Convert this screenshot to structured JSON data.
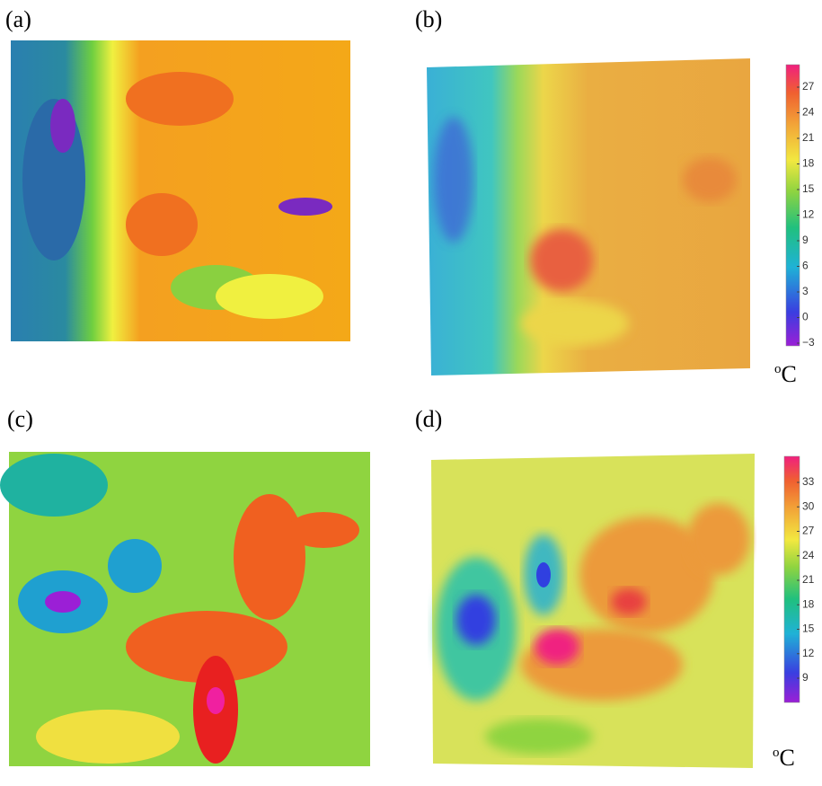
{
  "panels": [
    {
      "label": "(a)"
    },
    {
      "label": "(b)",
      "colorbar": {
        "ticks": [
          27,
          24,
          21,
          18,
          15,
          12,
          9,
          6,
          3,
          0,
          {
            "value": -3,
            "label": "−3"
          }
        ]
      },
      "unit": {
        "sup": "o",
        "main": "C"
      }
    },
    {
      "label": "(c)"
    },
    {
      "label": "(d)",
      "colorbar": {
        "ticks": [
          33,
          30,
          27,
          24,
          21,
          18,
          15,
          12,
          9
        ]
      },
      "unit": {
        "sup": "o",
        "main": "C"
      }
    }
  ]
}
